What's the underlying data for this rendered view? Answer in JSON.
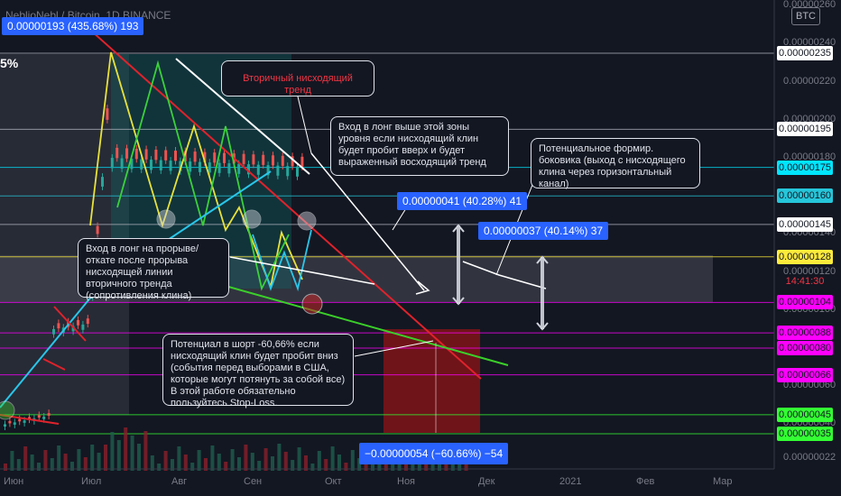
{
  "header": {
    "symbol_line": "NeblioNebl / Bitcoin, 1D BINANCE",
    "measure_top": "0.00000193 (435.68%) 193",
    "left_pct": "5%",
    "badge": "BTC"
  },
  "colors": {
    "background": "#131722",
    "resistance_line": "#e0222b",
    "support_line": "#3bcf2a",
    "wedge_blue": "#29c6e9",
    "wedge_yellow": "#e8e23a",
    "annotation_white": "#ffffff",
    "label_blue": "#2962ff"
  },
  "annotations": {
    "secondary_trend": "Вторичный нисходящий тренд",
    "long_above": "Вход в лонг выше этой зоны уровня если нисходящий клин будет пробит вверх и будет выраженный восходящий тренд",
    "sideways": "Потенциальное формир. боковика (выход с нисходящего клина через горизонтальный канал)",
    "long_breakout": "Вход в лонг на прорыве/откате после прорыва нисходящей линии вторичного тренда (сопротивления клина)",
    "short": "Потенциал в шорт -60,66% если нисходящий клин будет пробит вниз (события перед выборами в США, которые могут потянуть за собой все) В этой работе обязательно пользуйтесь Stop-Loss."
  },
  "measures": {
    "up1": "0.00000041 (40.28%) 41",
    "up2": "0.00000037 (40.14%) 37",
    "down": "−0.00000054 (−60.66%) −54"
  },
  "price_axis": {
    "ticks": [
      "0.00000260",
      "0.00000240",
      "0.00000220",
      "0.00000200",
      "0.00000180",
      "0.00000140",
      "0.00000120",
      "0.00000100",
      "0.00000060",
      "0.00000040",
      "0.00000022"
    ],
    "tags": [
      {
        "label": "0.00000235",
        "bg": "#ffffff",
        "fg": "#131722"
      },
      {
        "label": "0.00000195",
        "bg": "#ffffff",
        "fg": "#131722"
      },
      {
        "label": "0.00000175",
        "bg": "#00e5ff",
        "fg": "#131722"
      },
      {
        "label": "0.00000160",
        "bg": "#26c6da",
        "fg": "#131722"
      },
      {
        "label": "0.00000145",
        "bg": "#ffffff",
        "fg": "#131722"
      },
      {
        "label": "0.00000128",
        "bg": "#ffeb3b",
        "fg": "#131722"
      },
      {
        "label": "14:41:30",
        "bg": "#131722",
        "fg": "#f23645"
      },
      {
        "label": "0.00000104",
        "bg": "#ff00ff",
        "fg": "#131722"
      },
      {
        "label": "0.00000088",
        "bg": "#ff00ff",
        "fg": "#131722"
      },
      {
        "label": "0.00000080",
        "bg": "#ff00ff",
        "fg": "#131722"
      },
      {
        "label": "0.00000066",
        "bg": "#ff00ff",
        "fg": "#131722"
      },
      {
        "label": "0.00000045",
        "bg": "#33ff33",
        "fg": "#131722"
      },
      {
        "label": "0.00000035",
        "bg": "#33ff33",
        "fg": "#131722"
      }
    ]
  },
  "time_axis": [
    "Июн",
    "Июл",
    "Авг",
    "Сен",
    "Окт",
    "Ноя",
    "Дек",
    "2021",
    "Фев",
    "Мар"
  ],
  "chart_data": {
    "type": "line",
    "title": "NeblioNebl / Bitcoin, 1D BINANCE",
    "x": [
      "Июн",
      "Июл",
      "Авг",
      "Сен",
      "Окт",
      "Ноя",
      "Дек"
    ],
    "series": [
      {
        "name": "price",
        "values": [
          4.5e-07,
          1.05e-06,
          2e-06,
          1.35e-06,
          1.28e-06,
          null,
          null
        ]
      }
    ],
    "horizontal_levels": [
      2.35e-06,
      1.95e-06,
      1.75e-06,
      1.6e-06,
      1.45e-06,
      1.28e-06,
      1.04e-06,
      8.8e-07,
      8e-07,
      6.6e-07,
      4.5e-07,
      3.5e-07
    ],
    "ylim": [
      2.2e-07,
      2.6e-06
    ],
    "xlabel": "",
    "ylabel": ""
  }
}
